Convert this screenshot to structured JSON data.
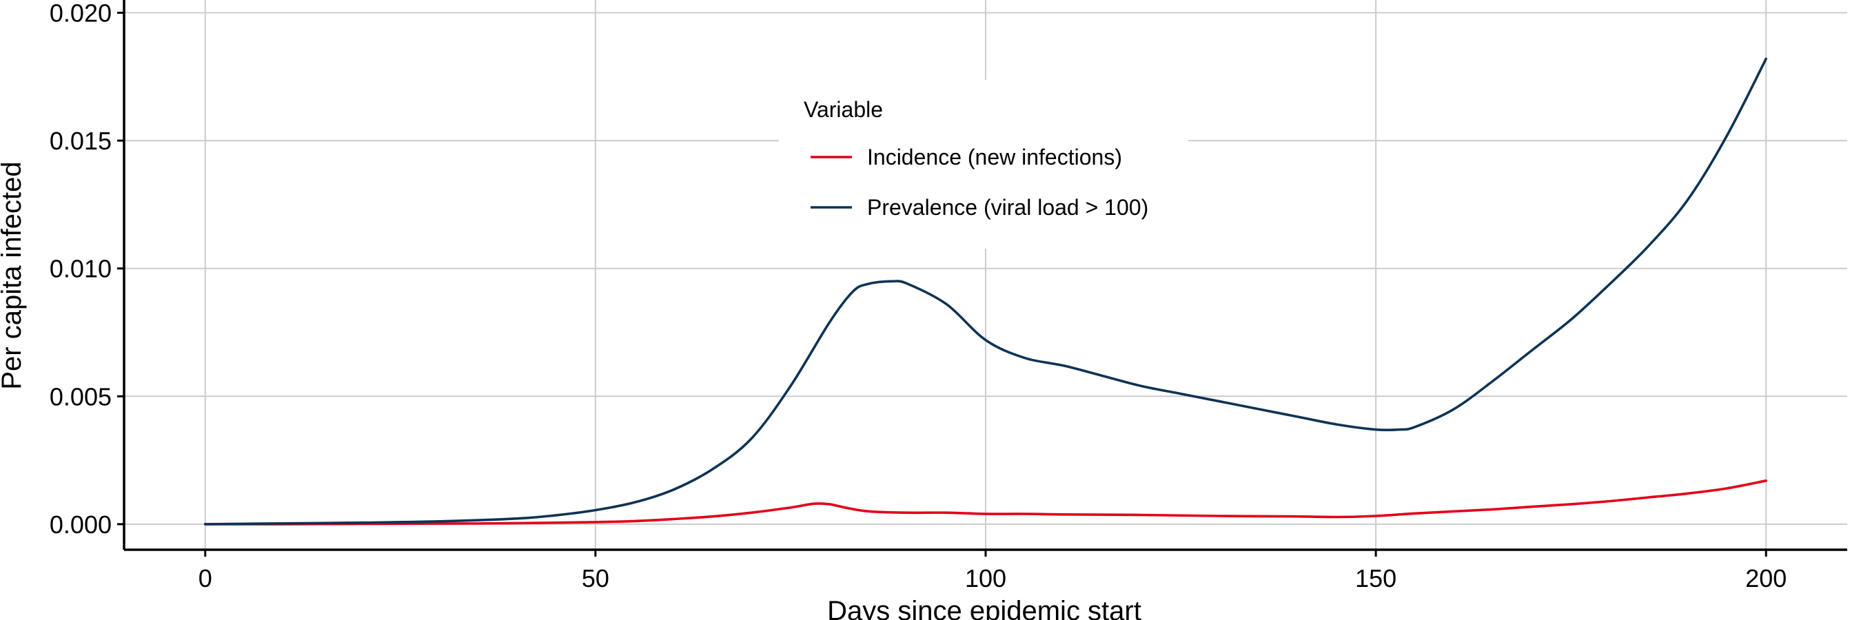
{
  "chart_data": {
    "type": "line",
    "title": "",
    "xlabel": "Days since epidemic start",
    "ylabel": "Per capita infected",
    "xlim": [
      -10.4,
      210.4
    ],
    "ylim": [
      -0.001,
      0.0205
    ],
    "x_ticks": [
      0,
      50,
      100,
      150,
      200
    ],
    "x_tick_labels": [
      "0",
      "50",
      "100",
      "150",
      "200"
    ],
    "y_ticks": [
      0.0,
      0.005,
      0.01,
      0.015,
      0.02
    ],
    "y_tick_labels": [
      "0.000",
      "0.005",
      "0.010",
      "0.015",
      "0.020"
    ],
    "grid": true,
    "legend": {
      "title": "Variable",
      "placement": "top-center"
    },
    "series": [
      {
        "name": "Incidence (new infections)",
        "color": "#e3001b",
        "x": [
          0,
          10,
          20,
          30,
          40,
          50,
          55,
          60,
          65,
          70,
          75,
          78,
          80,
          82,
          85,
          90,
          95,
          100,
          105,
          110,
          120,
          130,
          140,
          145,
          150,
          155,
          160,
          165,
          170,
          175,
          180,
          185,
          190,
          195,
          200
        ],
        "y": [
          0.0,
          0.0,
          1e-05,
          2e-05,
          4e-05,
          8e-05,
          0.00012,
          0.0002,
          0.0003,
          0.00045,
          0.00065,
          0.0008,
          0.00078,
          0.00065,
          0.0005,
          0.00045,
          0.00045,
          0.0004,
          0.0004,
          0.00038,
          0.00036,
          0.00032,
          0.0003,
          0.00028,
          0.00032,
          0.00042,
          0.0005,
          0.00058,
          0.00068,
          0.00078,
          0.0009,
          0.00105,
          0.0012,
          0.0014,
          0.0017
        ]
      },
      {
        "name": "Prevalence (viral load > 100)",
        "color": "#0e3354",
        "x": [
          0,
          10,
          20,
          30,
          40,
          45,
          50,
          55,
          60,
          65,
          70,
          75,
          80,
          83,
          85,
          88,
          90,
          95,
          100,
          105,
          110,
          115,
          120,
          125,
          130,
          135,
          140,
          145,
          150,
          153,
          155,
          160,
          165,
          170,
          175,
          180,
          185,
          190,
          195,
          200
        ],
        "y": [
          0.0,
          3e-05,
          6e-05,
          0.00011,
          0.00022,
          0.00035,
          0.00055,
          0.00085,
          0.00135,
          0.00215,
          0.00335,
          0.0054,
          0.0079,
          0.0091,
          0.0094,
          0.0095,
          0.0094,
          0.0086,
          0.0072,
          0.0065,
          0.0062,
          0.0058,
          0.0054,
          0.0051,
          0.0048,
          0.0045,
          0.0042,
          0.0039,
          0.0037,
          0.0037,
          0.0038,
          0.0045,
          0.0056,
          0.0068,
          0.008,
          0.0094,
          0.0109,
          0.0127,
          0.0152,
          0.0182
        ]
      }
    ]
  }
}
